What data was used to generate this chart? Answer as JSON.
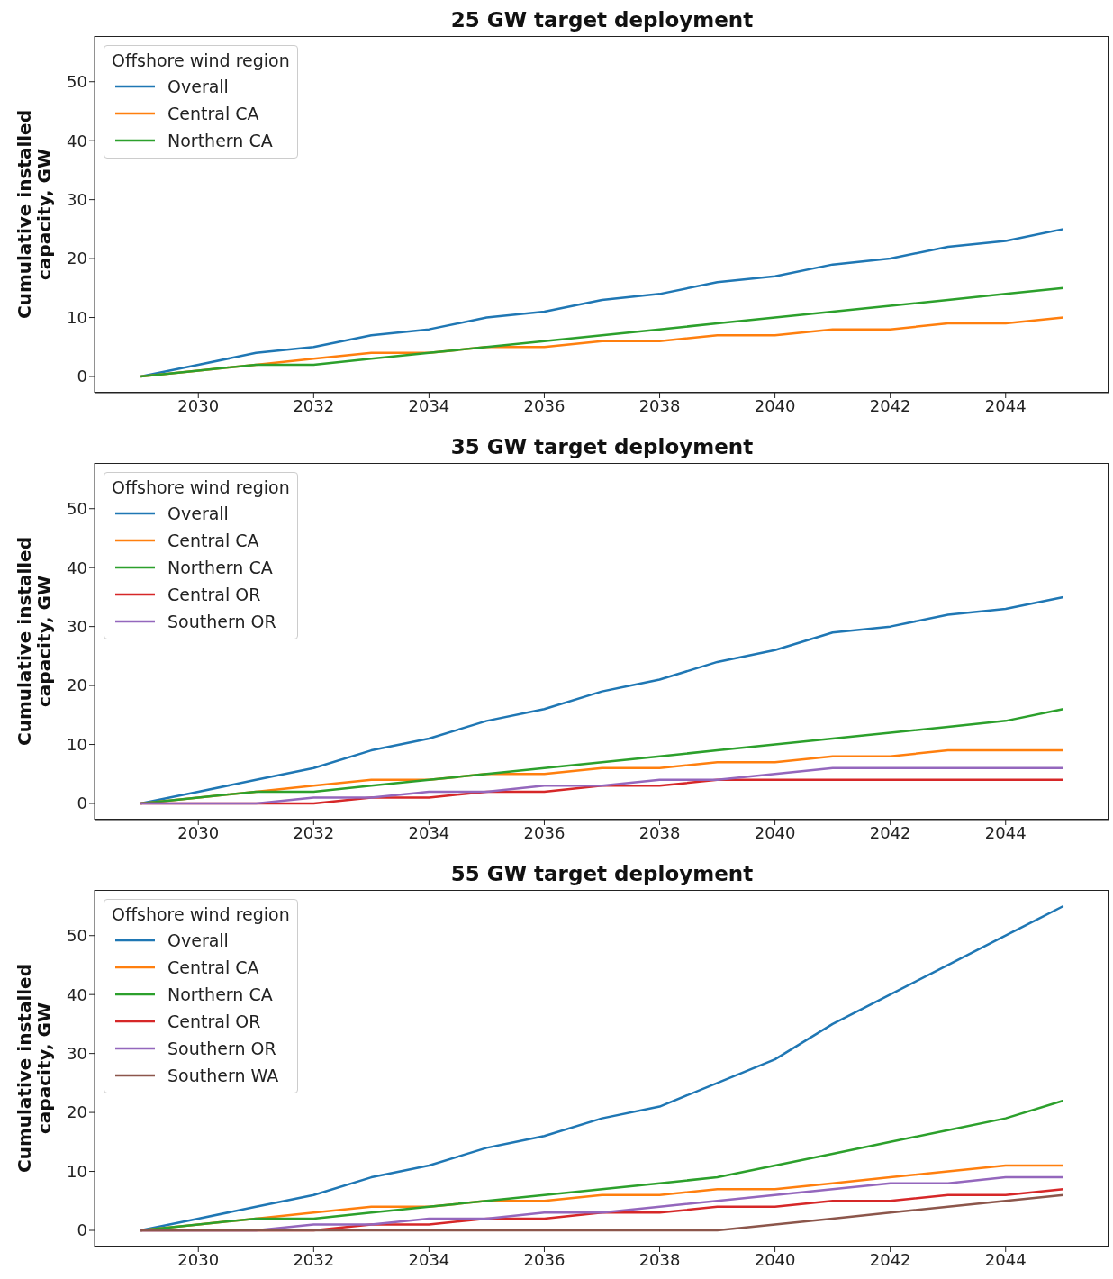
{
  "chart_data": [
    {
      "type": "line",
      "title": "25 GW target deployment",
      "ylabel": "Cumulative installed capacity, GW",
      "legend_title": "Offshore wind region",
      "legend": "top left",
      "grid": false,
      "x": [
        2029,
        2030,
        2031,
        2032,
        2033,
        2034,
        2035,
        2036,
        2037,
        2038,
        2039,
        2040,
        2041,
        2042,
        2043,
        2044,
        2045
      ],
      "xlim": [
        2028.2,
        2045.8
      ],
      "xticks": [
        2030,
        2032,
        2034,
        2036,
        2038,
        2040,
        2042,
        2044
      ],
      "ylim": [
        -2.75,
        57.75
      ],
      "yticks": [
        0,
        10,
        20,
        30,
        40,
        50
      ],
      "series": [
        {
          "name": "Overall",
          "color": "#1f77b4",
          "values": [
            0,
            2,
            4,
            5,
            7,
            8,
            10,
            11,
            13,
            14,
            16,
            17,
            19,
            20,
            22,
            23,
            25
          ]
        },
        {
          "name": "Central CA",
          "color": "#ff7f0e",
          "values": [
            0,
            1,
            2,
            3,
            4,
            4,
            5,
            5,
            6,
            6,
            7,
            7,
            8,
            8,
            9,
            9,
            10
          ]
        },
        {
          "name": "Northern CA",
          "color": "#2ca02c",
          "values": [
            0,
            1,
            2,
            2,
            3,
            4,
            5,
            6,
            7,
            8,
            9,
            10,
            11,
            12,
            13,
            14,
            15
          ]
        }
      ]
    },
    {
      "type": "line",
      "title": "35 GW target deployment",
      "ylabel": "Cumulative installed capacity, GW",
      "legend_title": "Offshore wind region",
      "legend": "top left",
      "grid": false,
      "x": [
        2029,
        2030,
        2031,
        2032,
        2033,
        2034,
        2035,
        2036,
        2037,
        2038,
        2039,
        2040,
        2041,
        2042,
        2043,
        2044,
        2045
      ],
      "xlim": [
        2028.2,
        2045.8
      ],
      "xticks": [
        2030,
        2032,
        2034,
        2036,
        2038,
        2040,
        2042,
        2044
      ],
      "ylim": [
        -2.75,
        57.75
      ],
      "yticks": [
        0,
        10,
        20,
        30,
        40,
        50
      ],
      "series": [
        {
          "name": "Overall",
          "color": "#1f77b4",
          "values": [
            0,
            2,
            4,
            6,
            9,
            11,
            14,
            16,
            19,
            21,
            24,
            26,
            29,
            30,
            32,
            33,
            35
          ]
        },
        {
          "name": "Central CA",
          "color": "#ff7f0e",
          "values": [
            0,
            1,
            2,
            3,
            4,
            4,
            5,
            5,
            6,
            6,
            7,
            7,
            8,
            8,
            9,
            9,
            9
          ]
        },
        {
          "name": "Northern CA",
          "color": "#2ca02c",
          "values": [
            0,
            1,
            2,
            2,
            3,
            4,
            5,
            6,
            7,
            8,
            9,
            10,
            11,
            12,
            13,
            14,
            16
          ]
        },
        {
          "name": "Central OR",
          "color": "#d62728",
          "values": [
            0,
            0,
            0,
            0,
            1,
            1,
            2,
            2,
            3,
            3,
            4,
            4,
            4,
            4,
            4,
            4,
            4
          ]
        },
        {
          "name": "Southern OR",
          "color": "#9467bd",
          "values": [
            0,
            0,
            0,
            1,
            1,
            2,
            2,
            3,
            3,
            4,
            4,
            5,
            6,
            6,
            6,
            6,
            6
          ]
        }
      ]
    },
    {
      "type": "line",
      "title": "55 GW target deployment",
      "ylabel": "Cumulative installed capacity, GW",
      "legend_title": "Offshore wind region",
      "legend": "top left",
      "grid": false,
      "x": [
        2029,
        2030,
        2031,
        2032,
        2033,
        2034,
        2035,
        2036,
        2037,
        2038,
        2039,
        2040,
        2041,
        2042,
        2043,
        2044,
        2045
      ],
      "xlim": [
        2028.2,
        2045.8
      ],
      "xticks": [
        2030,
        2032,
        2034,
        2036,
        2038,
        2040,
        2042,
        2044
      ],
      "ylim": [
        -2.75,
        57.75
      ],
      "yticks": [
        0,
        10,
        20,
        30,
        40,
        50
      ],
      "series": [
        {
          "name": "Overall",
          "color": "#1f77b4",
          "values": [
            0,
            2,
            4,
            6,
            9,
            11,
            14,
            16,
            19,
            21,
            25,
            29,
            35,
            40,
            45,
            50,
            55
          ]
        },
        {
          "name": "Central CA",
          "color": "#ff7f0e",
          "values": [
            0,
            1,
            2,
            3,
            4,
            4,
            5,
            5,
            6,
            6,
            7,
            7,
            8,
            9,
            10,
            11,
            11
          ]
        },
        {
          "name": "Northern CA",
          "color": "#2ca02c",
          "values": [
            0,
            1,
            2,
            2,
            3,
            4,
            5,
            6,
            7,
            8,
            9,
            11,
            13,
            15,
            17,
            19,
            22
          ]
        },
        {
          "name": "Central OR",
          "color": "#d62728",
          "values": [
            0,
            0,
            0,
            0,
            1,
            1,
            2,
            2,
            3,
            3,
            4,
            4,
            5,
            5,
            6,
            6,
            7
          ]
        },
        {
          "name": "Southern OR",
          "color": "#9467bd",
          "values": [
            0,
            0,
            0,
            1,
            1,
            2,
            2,
            3,
            3,
            4,
            5,
            6,
            7,
            8,
            8,
            9,
            9
          ]
        },
        {
          "name": "Southern WA",
          "color": "#8c564b",
          "values": [
            0,
            0,
            0,
            0,
            0,
            0,
            0,
            0,
            0,
            0,
            0,
            1,
            2,
            3,
            4,
            5,
            6
          ]
        }
      ]
    }
  ]
}
